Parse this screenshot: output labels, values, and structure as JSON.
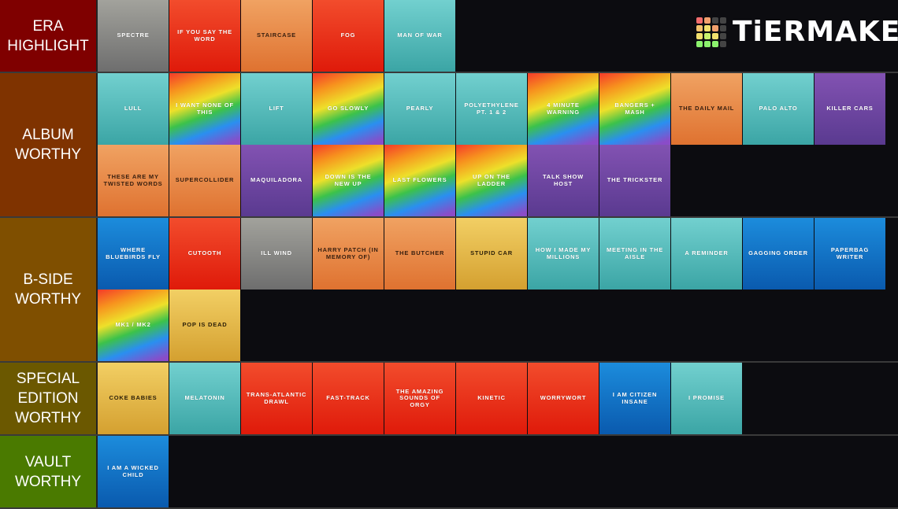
{
  "logo": "TiERMAKER",
  "tiers": [
    {
      "label": "ERA HIGHLIGHT",
      "color": "#7f0000",
      "items": [
        {
          "name": "SPECTRE",
          "bg": "gray"
        },
        {
          "name": "IF YOU SAY THE WORD",
          "bg": "red"
        },
        {
          "name": "STAIRCASE",
          "bg": "orange"
        },
        {
          "name": "FOG",
          "bg": "red"
        },
        {
          "name": "MAN OF WAR",
          "bg": "teal"
        }
      ]
    },
    {
      "label": "ALBUM WORTHY",
      "color": "#7f3300",
      "items": [
        {
          "name": "LULL",
          "bg": "teal"
        },
        {
          "name": "I WANT NONE OF THIS",
          "bg": "rainbow"
        },
        {
          "name": "LIFT",
          "bg": "teal"
        },
        {
          "name": "GO SLOWLY",
          "bg": "rainbow"
        },
        {
          "name": "PEARLY",
          "bg": "teal"
        },
        {
          "name": "POLYETHYLENE PT. 1 & 2",
          "bg": "teal"
        },
        {
          "name": "4 MINUTE WARNING",
          "bg": "rainbow"
        },
        {
          "name": "BANGERS + MASH",
          "bg": "rainbow"
        },
        {
          "name": "THE DAILY MAIL",
          "bg": "orange"
        },
        {
          "name": "PALO ALTO",
          "bg": "teal"
        },
        {
          "name": "KILLER CARS",
          "bg": "purple"
        },
        {
          "name": "THESE ARE MY TWISTED WORDS",
          "bg": "orange"
        },
        {
          "name": "SUPERCOLLIDER",
          "bg": "orange"
        },
        {
          "name": "MAQUILADORA",
          "bg": "purple"
        },
        {
          "name": "DOWN IS THE NEW UP",
          "bg": "rainbow"
        },
        {
          "name": "LAST FLOWERS",
          "bg": "rainbow"
        },
        {
          "name": "UP ON THE LADDER",
          "bg": "rainbow"
        },
        {
          "name": "TALK SHOW HOST",
          "bg": "purple"
        },
        {
          "name": "THE TRICKSTER",
          "bg": "purple"
        }
      ]
    },
    {
      "label": "B-SIDE WORTHY",
      "color": "#7f4f00",
      "items": [
        {
          "name": "WHERE BLUEBIRDS FLY",
          "bg": "blue"
        },
        {
          "name": "CUTOOTH",
          "bg": "red"
        },
        {
          "name": "ILL WIND",
          "bg": "gray"
        },
        {
          "name": "HARRY PATCH (IN MEMORY OF)",
          "bg": "orange"
        },
        {
          "name": "THE BUTCHER",
          "bg": "orange"
        },
        {
          "name": "STUPID CAR",
          "bg": "yellow"
        },
        {
          "name": "HOW I MADE MY MILLIONS",
          "bg": "teal"
        },
        {
          "name": "MEETING IN THE AISLE",
          "bg": "teal"
        },
        {
          "name": "A REMINDER",
          "bg": "teal"
        },
        {
          "name": "GAGGING ORDER",
          "bg": "blue"
        },
        {
          "name": "PAPERBAG WRITER",
          "bg": "blue"
        },
        {
          "name": "MK1 / MK2",
          "bg": "rainbow"
        },
        {
          "name": "POP IS DEAD",
          "bg": "yellow"
        }
      ]
    },
    {
      "label": "SPECIAL EDITION WORTHY",
      "color": "#6b5800",
      "items": [
        {
          "name": "COKE BABIES",
          "bg": "yellow"
        },
        {
          "name": "MELATONIN",
          "bg": "teal"
        },
        {
          "name": "TRANS-ATLANTIC DRAWL",
          "bg": "red"
        },
        {
          "name": "FAST-TRACK",
          "bg": "red"
        },
        {
          "name": "THE AMAZING SOUNDS OF ORGY",
          "bg": "red"
        },
        {
          "name": "KINETIC",
          "bg": "red"
        },
        {
          "name": "WORRYWORT",
          "bg": "red"
        },
        {
          "name": "I AM CITIZEN INSANE",
          "bg": "blue"
        },
        {
          "name": "I PROMISE",
          "bg": "teal"
        }
      ]
    },
    {
      "label": "VAULT WORTHY",
      "color": "#4a7a00",
      "items": [
        {
          "name": "I AM A WICKED CHILD",
          "bg": "blue"
        }
      ]
    }
  ]
}
